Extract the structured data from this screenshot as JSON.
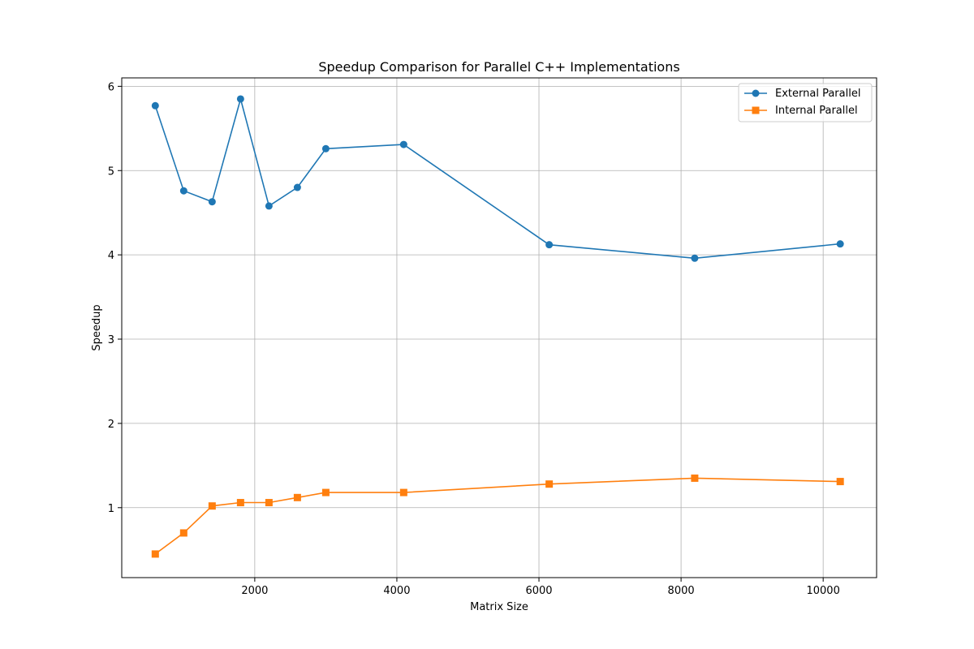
{
  "chart_data": {
    "type": "line",
    "title": "Speedup Comparison for Parallel C++ Implementations",
    "xlabel": "Matrix Size",
    "ylabel": "Speedup",
    "xlim": [
      128,
      10752
    ],
    "ylim": [
      0.17,
      6.1
    ],
    "xticks": [
      2000,
      4000,
      6000,
      8000,
      10000
    ],
    "yticks": [
      1,
      2,
      3,
      4,
      5,
      6
    ],
    "grid": true,
    "legend_position": "upper right",
    "x": [
      600,
      1000,
      1400,
      1800,
      2200,
      2600,
      3000,
      4096,
      6144,
      8192,
      10240
    ],
    "series": [
      {
        "name": "External Parallel",
        "marker": "circle",
        "color": "#1f77b4",
        "values": [
          5.77,
          4.76,
          4.63,
          5.85,
          4.58,
          4.8,
          5.26,
          5.31,
          4.12,
          3.96,
          4.13
        ]
      },
      {
        "name": "Internal Parallel",
        "marker": "square",
        "color": "#ff7f0e",
        "values": [
          0.45,
          0.7,
          1.02,
          1.06,
          1.06,
          1.12,
          1.18,
          1.18,
          1.28,
          1.35,
          1.31
        ]
      }
    ]
  }
}
